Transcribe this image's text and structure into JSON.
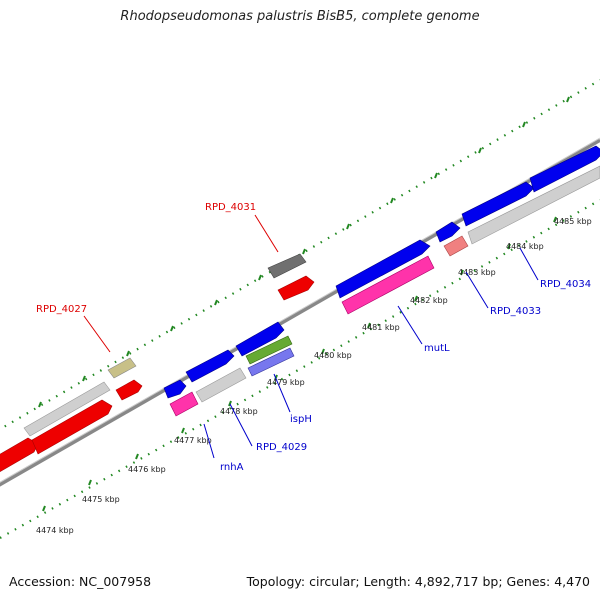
{
  "title": "Rhodopseudomonas palustris BisB5, complete genome",
  "accession": "Accession: NC_007958",
  "summary": "Topology: circular; Length: 4,892,717 bp; Genes: 4,470",
  "ticks": [
    "4474 kbp",
    "4475 kbp",
    "4476 kbp",
    "4477 kbp",
    "4478 kbp",
    "4479 kbp",
    "4480 kbp",
    "4481 kbp",
    "4482 kbp",
    "4483 kbp",
    "4484 kbp",
    "4485 kbp"
  ],
  "gene_labels": {
    "rpd4027": "RPD_4027",
    "rpd4031": "RPD_4031",
    "rnha": "rnhA",
    "rpd4029": "RPD_4029",
    "isph": "ispH",
    "mutl": "mutL",
    "rpd4033": "RPD_4033",
    "rpd4034": "RPD_4034"
  },
  "colors": {
    "forward_cds": "#0000ee",
    "reverse_cds": "#ee0000",
    "gene_gray": "#cfcfcf",
    "magenta": "#ff33aa",
    "olive": "#c8c088",
    "dark_gray": "#707070",
    "green": "#66aa33",
    "violet": "#7777ee",
    "pink": "#f08080",
    "backbone": "#888888",
    "tick_green": "#228822",
    "label_red": "#dd0000",
    "label_blue": "#0000cc"
  }
}
